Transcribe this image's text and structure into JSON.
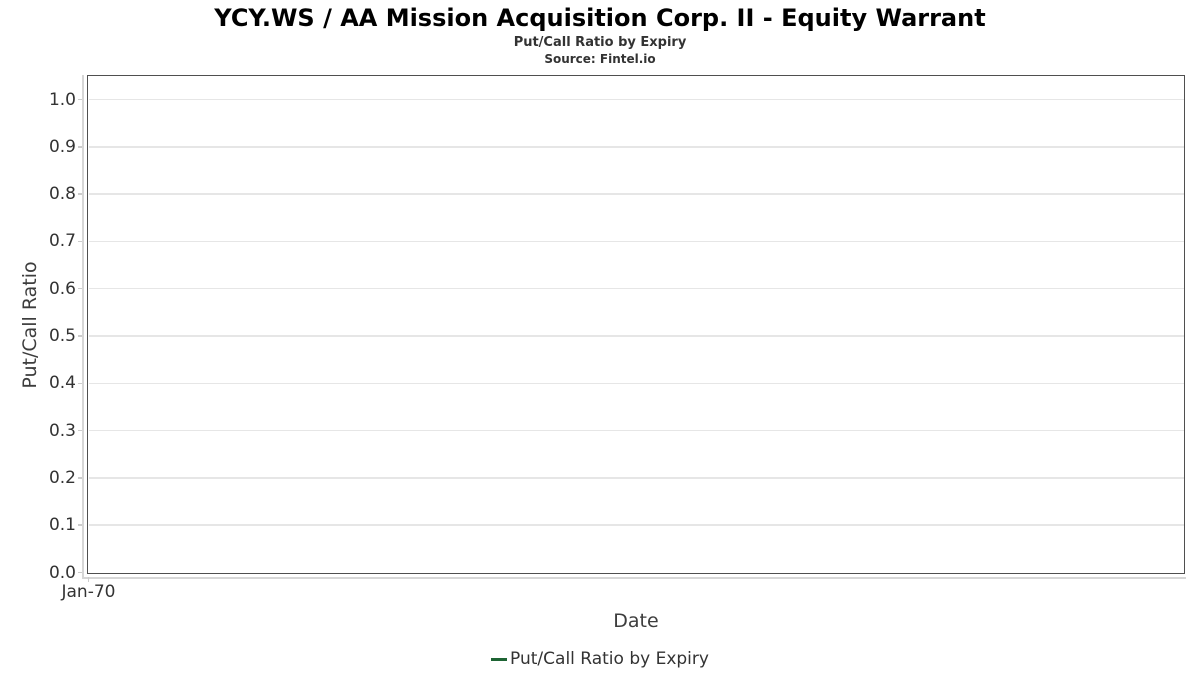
{
  "page": {
    "title": "YCY.WS / AA Mission Acquisition Corp. II - Equity Warrant",
    "subtitle": "Put/Call Ratio by Expiry",
    "source": "Source: Fintel.io"
  },
  "chart_data": {
    "type": "line",
    "title": "YCY.WS / AA Mission Acquisition Corp. II - Equity Warrant",
    "subtitle": "Put/Call Ratio by Expiry",
    "source": "Source: Fintel.io",
    "xlabel": "Date",
    "ylabel": "Put/Call Ratio",
    "x_tick_labels": [
      "Jan-70"
    ],
    "y_tick_labels": [
      "0.0",
      "0.1",
      "0.2",
      "0.3",
      "0.4",
      "0.5",
      "0.6",
      "0.7",
      "0.8",
      "0.9",
      "1.0"
    ],
    "y_tick_values": [
      0.0,
      0.1,
      0.2,
      0.3,
      0.4,
      0.5,
      0.6,
      0.7,
      0.8,
      0.9,
      1.0
    ],
    "ylim": [
      0.0,
      1.05
    ],
    "grid": true,
    "legend_position": "bottom-center",
    "series": [
      {
        "name": "Put/Call Ratio by Expiry",
        "color": "#1e6434",
        "x": [],
        "values": []
      }
    ]
  },
  "legend": {
    "items": [
      {
        "label": "Put/Call Ratio by Expiry",
        "color": "#1e6434"
      }
    ]
  },
  "colors": {
    "plot_border": "#4f4f4f",
    "gridline": "#e6e6e6",
    "axis_line": "#d6d6d6",
    "tick": "#cccccc",
    "text": "#333333",
    "axis_title_text": "#3d3d3d",
    "series_green": "#1e6434"
  }
}
